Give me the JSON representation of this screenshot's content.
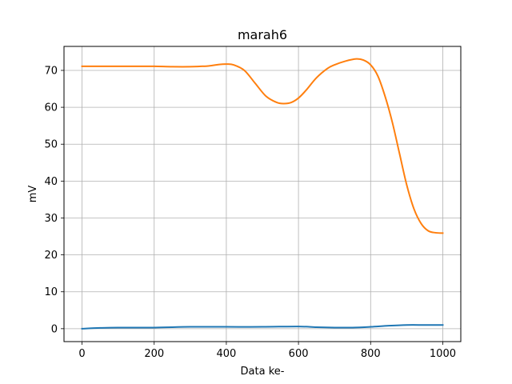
{
  "chart_data": {
    "type": "line",
    "title": "marah6",
    "xlabel": "Data ke-",
    "ylabel": "mV",
    "xlim": [
      -50,
      1050
    ],
    "ylim": [
      -3.5,
      76.5
    ],
    "xticks": [
      0,
      200,
      400,
      600,
      800,
      1000
    ],
    "yticks": [
      0,
      10,
      20,
      30,
      40,
      50,
      60,
      70
    ],
    "grid": true,
    "series": [
      {
        "color": "#1f77b4",
        "x": [
          0,
          50,
          100,
          200,
          300,
          400,
          500,
          600,
          650,
          700,
          750,
          800,
          850,
          900,
          950,
          1000
        ],
        "y": [
          0.0,
          0.2,
          0.3,
          0.3,
          0.5,
          0.5,
          0.5,
          0.6,
          0.4,
          0.3,
          0.3,
          0.5,
          0.8,
          1.0,
          1.0,
          1.0
        ]
      },
      {
        "color": "#ff7f0e",
        "x": [
          0,
          50,
          100,
          150,
          200,
          250,
          300,
          350,
          380,
          400,
          420,
          450,
          480,
          510,
          540,
          560,
          580,
          600,
          620,
          650,
          680,
          700,
          730,
          760,
          780,
          800,
          820,
          840,
          860,
          880,
          900,
          920,
          940,
          960,
          980,
          1000
        ],
        "y": [
          71.1,
          71.1,
          71.1,
          71.1,
          71.1,
          71.0,
          71.0,
          71.2,
          71.6,
          71.7,
          71.5,
          70.0,
          66.5,
          63.0,
          61.3,
          61.0,
          61.3,
          62.5,
          64.5,
          68.0,
          70.5,
          71.5,
          72.5,
          73.1,
          72.8,
          71.5,
          68.5,
          63.0,
          56.0,
          47.5,
          39.0,
          32.5,
          28.5,
          26.5,
          26.0,
          25.9
        ]
      }
    ]
  }
}
